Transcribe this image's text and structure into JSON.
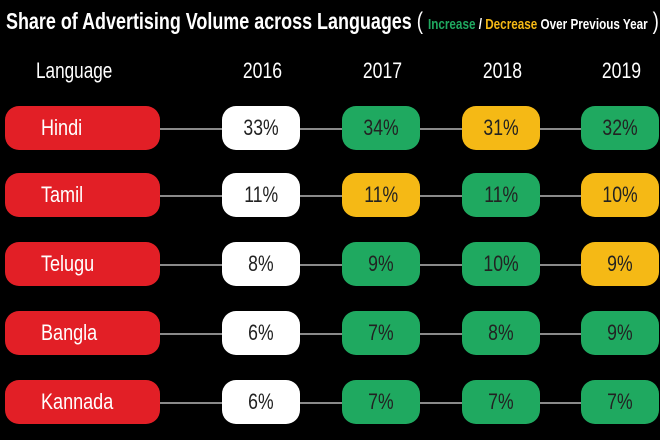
{
  "chart_data": {
    "type": "table",
    "title": "Share of Advertising Volume across Languages",
    "legend": {
      "open": "(",
      "increase": "Increase",
      "slash": " / ",
      "decrease": "Decrease",
      "rest": " Over Previous Year",
      "close": ")"
    },
    "colors": {
      "language": "#e21f26",
      "base": "#ffffff",
      "increase": "#1fa960",
      "decrease": "#f5b915"
    },
    "header": "Language",
    "years": [
      "2016",
      "2017",
      "2018",
      "2019"
    ],
    "rows": [
      {
        "language": "Hindi",
        "values": [
          "33%",
          "34%",
          "31%",
          "32%"
        ],
        "status": [
          "base",
          "increase",
          "decrease",
          "increase"
        ]
      },
      {
        "language": "Tamil",
        "values": [
          "11%",
          "11%",
          "11%",
          "10%"
        ],
        "status": [
          "base",
          "decrease",
          "increase",
          "decrease"
        ]
      },
      {
        "language": "Telugu",
        "values": [
          "8%",
          "9%",
          "10%",
          "9%"
        ],
        "status": [
          "base",
          "increase",
          "increase",
          "decrease"
        ]
      },
      {
        "language": "Bangla",
        "values": [
          "6%",
          "7%",
          "8%",
          "9%"
        ],
        "status": [
          "base",
          "increase",
          "increase",
          "increase"
        ]
      },
      {
        "language": "Kannada",
        "values": [
          "6%",
          "7%",
          "7%",
          "7%"
        ],
        "status": [
          "base",
          "increase",
          "increase",
          "increase"
        ]
      }
    ]
  }
}
